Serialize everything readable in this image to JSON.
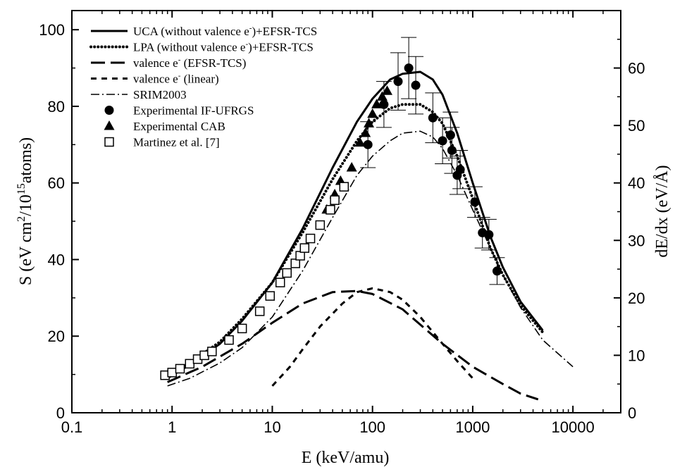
{
  "chart_data": {
    "type": "line",
    "x_scale": "log",
    "xlim": [
      0.1,
      30000
    ],
    "ylim": [
      0,
      105
    ],
    "y2lim": [
      0,
      70
    ],
    "xlabel": "E (keV/amu)",
    "ylabel_parts": [
      "S (eV cm",
      "2",
      "/10",
      "15",
      "atoms)"
    ],
    "y2label": "dE/dx (eV/Å)",
    "x_ticks": [
      {
        "value": 0.1,
        "label": "0.1"
      },
      {
        "value": 1,
        "label": "1"
      },
      {
        "value": 10,
        "label": "10"
      },
      {
        "value": 100,
        "label": "100"
      },
      {
        "value": 1000,
        "label": "1000"
      },
      {
        "value": 10000,
        "label": "10000"
      }
    ],
    "y_ticks": [
      {
        "value": 0,
        "label": "0"
      },
      {
        "value": 20,
        "label": "20"
      },
      {
        "value": 40,
        "label": "40"
      },
      {
        "value": 60,
        "label": "60"
      },
      {
        "value": 80,
        "label": "80"
      },
      {
        "value": 100,
        "label": "100"
      }
    ],
    "y2_ticks": [
      {
        "value": 0,
        "label": "0"
      },
      {
        "value": 10,
        "label": "10"
      },
      {
        "value": 20,
        "label": "20"
      },
      {
        "value": 30,
        "label": "30"
      },
      {
        "value": 40,
        "label": "40"
      },
      {
        "value": 50,
        "label": "50"
      },
      {
        "value": 60,
        "label": "60"
      }
    ],
    "legend_position": "top-left",
    "series": [
      {
        "id": "uca",
        "name_main": "UCA (without valence e",
        "name_sup": "-",
        "name_tail": ")+EFSR-TCS",
        "style": "solid",
        "width": 3,
        "x": [
          0.9,
          1.5,
          3,
          5,
          10,
          20,
          40,
          70,
          100,
          150,
          200,
          300,
          400,
          500,
          700,
          1000,
          1500,
          2000,
          3000,
          5000
        ],
        "y": [
          9,
          12.5,
          18,
          24,
          34,
          48,
          64,
          76,
          82,
          87,
          88.5,
          89,
          87,
          83,
          73,
          60,
          46,
          38,
          29,
          21.5
        ]
      },
      {
        "id": "lpa",
        "name_main": "LPA (without valence e",
        "name_sup": "-",
        "name_tail": ")+EFSR-TCS",
        "style": "dotted",
        "width": 4,
        "x": [
          0.9,
          1.5,
          3,
          5,
          10,
          20,
          40,
          70,
          100,
          150,
          200,
          300,
          400,
          500,
          700,
          1000,
          1500,
          2000,
          3000,
          5000
        ],
        "y": [
          9.5,
          13,
          18.5,
          24.5,
          34,
          47,
          61,
          71,
          76,
          79.5,
          80.5,
          80.5,
          78.5,
          75.5,
          67,
          56,
          43,
          36,
          28,
          21
        ]
      },
      {
        "id": "valence_efsr",
        "name_main": "valence e",
        "name_sup": "-",
        "name_tail": " (EFSR-TCS)",
        "style": "long-dash",
        "width": 3,
        "x": [
          0.9,
          2,
          5,
          10,
          20,
          40,
          70,
          100,
          200,
          300,
          500,
          1000,
          2000,
          3000,
          4500
        ],
        "y": [
          8,
          12,
          18,
          23.5,
          28.5,
          31.5,
          31.8,
          31,
          27,
          23,
          18,
          12,
          7.5,
          5,
          3.5
        ]
      },
      {
        "id": "valence_linear",
        "name_main": "valence e",
        "name_sup": "-",
        "name_tail": " (linear)",
        "style": "short-dash",
        "width": 3,
        "x": [
          10,
          15,
          20,
          30,
          50,
          70,
          100,
          150,
          200,
          300,
          500,
          700,
          1000
        ],
        "y": [
          7,
          12,
          16.5,
          22.5,
          28.5,
          31.5,
          32.5,
          31.5,
          29.5,
          25,
          18,
          13.5,
          9
        ]
      },
      {
        "id": "srim",
        "name_main": "SRIM2003",
        "name_sup": "",
        "name_tail": "",
        "style": "dash-dot",
        "width": 1.6,
        "x": [
          0.9,
          1.5,
          3,
          5,
          10,
          20,
          40,
          70,
          100,
          150,
          200,
          300,
          400,
          500,
          700,
          1000,
          2000,
          3000,
          5000,
          10000
        ],
        "y": [
          7,
          9,
          13,
          17,
          25,
          37,
          51,
          62,
          67,
          71,
          73,
          73.5,
          72,
          69,
          62,
          53,
          36,
          27.5,
          19,
          12
        ]
      }
    ],
    "experimental": [
      {
        "id": "if_ufrgs",
        "name": "Experimental IF-UFRGS",
        "marker": "circle",
        "points": [
          {
            "x": 90,
            "y": 70,
            "err": 6
          },
          {
            "x": 130,
            "y": 80.5,
            "err": 6
          },
          {
            "x": 180,
            "y": 86.5,
            "err": 7.5
          },
          {
            "x": 230,
            "y": 90,
            "err": 8
          },
          {
            "x": 270,
            "y": 85.5,
            "err": 7.5
          },
          {
            "x": 400,
            "y": 77,
            "err": 6.5
          },
          {
            "x": 500,
            "y": 71,
            "err": 6
          },
          {
            "x": 600,
            "y": 72.5,
            "err": 6
          },
          {
            "x": 620,
            "y": 68.5,
            "err": 6
          },
          {
            "x": 700,
            "y": 62,
            "err": 5
          },
          {
            "x": 750,
            "y": 63.5,
            "err": 5
          },
          {
            "x": 1050,
            "y": 55,
            "err": 4
          },
          {
            "x": 1250,
            "y": 47,
            "err": 4
          },
          {
            "x": 1450,
            "y": 46.5,
            "err": 4
          },
          {
            "x": 1750,
            "y": 37,
            "err": 3.5
          }
        ]
      },
      {
        "id": "cab",
        "name": "Experimental CAB",
        "marker": "triangle",
        "points": [
          {
            "x": 35,
            "y": 53
          },
          {
            "x": 42,
            "y": 57
          },
          {
            "x": 48,
            "y": 60.5
          },
          {
            "x": 62,
            "y": 64
          },
          {
            "x": 75,
            "y": 70.5
          },
          {
            "x": 85,
            "y": 73
          },
          {
            "x": 92,
            "y": 75.5
          },
          {
            "x": 100,
            "y": 78
          },
          {
            "x": 110,
            "y": 80.5
          },
          {
            "x": 125,
            "y": 82.5
          },
          {
            "x": 140,
            "y": 84
          }
        ]
      },
      {
        "id": "martinez",
        "name": "Martinez et al. [7]",
        "marker": "square",
        "points": [
          {
            "x": 0.85,
            "y": 9.8
          },
          {
            "x": 1.0,
            "y": 10.5
          },
          {
            "x": 1.2,
            "y": 11.5
          },
          {
            "x": 1.5,
            "y": 12.8
          },
          {
            "x": 1.8,
            "y": 14
          },
          {
            "x": 2.1,
            "y": 15
          },
          {
            "x": 2.5,
            "y": 16
          },
          {
            "x": 3.7,
            "y": 19
          },
          {
            "x": 5.0,
            "y": 22
          },
          {
            "x": 7.5,
            "y": 26.5
          },
          {
            "x": 9.5,
            "y": 30.5
          },
          {
            "x": 12,
            "y": 34
          },
          {
            "x": 14,
            "y": 36.5
          },
          {
            "x": 17,
            "y": 39
          },
          {
            "x": 19,
            "y": 41
          },
          {
            "x": 21,
            "y": 43
          },
          {
            "x": 24,
            "y": 45.5
          },
          {
            "x": 30,
            "y": 49
          },
          {
            "x": 38,
            "y": 53
          },
          {
            "x": 42,
            "y": 55.5
          },
          {
            "x": 52,
            "y": 59
          }
        ]
      }
    ]
  }
}
